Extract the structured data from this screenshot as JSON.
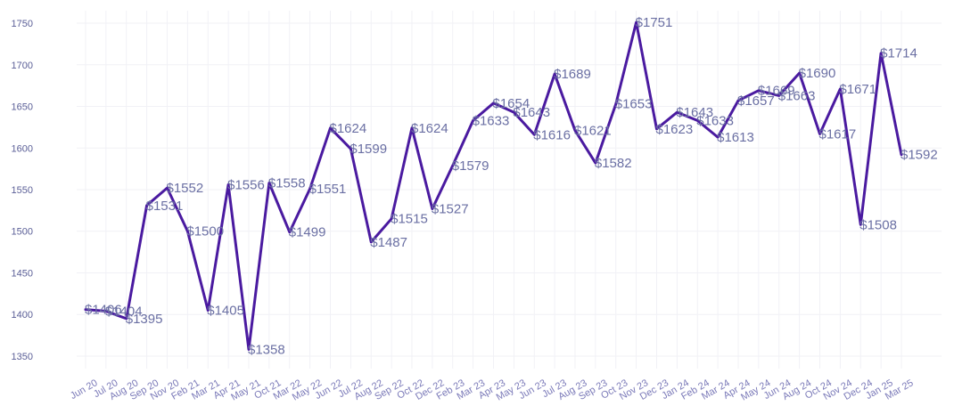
{
  "chart_data": {
    "type": "line",
    "title": "",
    "xlabel": "",
    "ylabel": "",
    "ylim": [
      1335,
      1765
    ],
    "yticks": [
      1350,
      1400,
      1450,
      1500,
      1550,
      1600,
      1650,
      1700,
      1750
    ],
    "grid": true,
    "line_color": "#4a1aa0",
    "value_prefix": "$",
    "categories": [
      "Jun 20",
      "Jul 20",
      "Aug 20",
      "Sep 20",
      "Nov 20",
      "Feb 21",
      "Mar 21",
      "Apr 21",
      "May 21",
      "Oct 21",
      "Mar 22",
      "May 22",
      "Jun 22",
      "Jul 22",
      "Aug 22",
      "Sep 22",
      "Oct 22",
      "Dec 22",
      "Feb 23",
      "Mar 23",
      "Apr 23",
      "May 23",
      "Jun 23",
      "Jul 23",
      "Aug 23",
      "Sep 23",
      "Oct 23",
      "Nov 23",
      "Dec 23",
      "Jan 24",
      "Feb 24",
      "Mar 24",
      "Apr 24",
      "May 24",
      "Jun 24",
      "Aug 24",
      "Oct 24",
      "Nov 24",
      "Dec 24",
      "Jan 25",
      "Mar 25"
    ],
    "values": [
      1406,
      1404,
      1395,
      1531,
      1552,
      1500,
      1405,
      1556,
      1358,
      1558,
      1499,
      1551,
      1624,
      1599,
      1487,
      1515,
      1624,
      1527,
      1579,
      1633,
      1654,
      1643,
      1616,
      1689,
      1621,
      1582,
      1653,
      1751,
      1623,
      1643,
      1633,
      1613,
      1657,
      1669,
      1663,
      1690,
      1617,
      1671,
      1508,
      1714,
      1592
    ]
  }
}
